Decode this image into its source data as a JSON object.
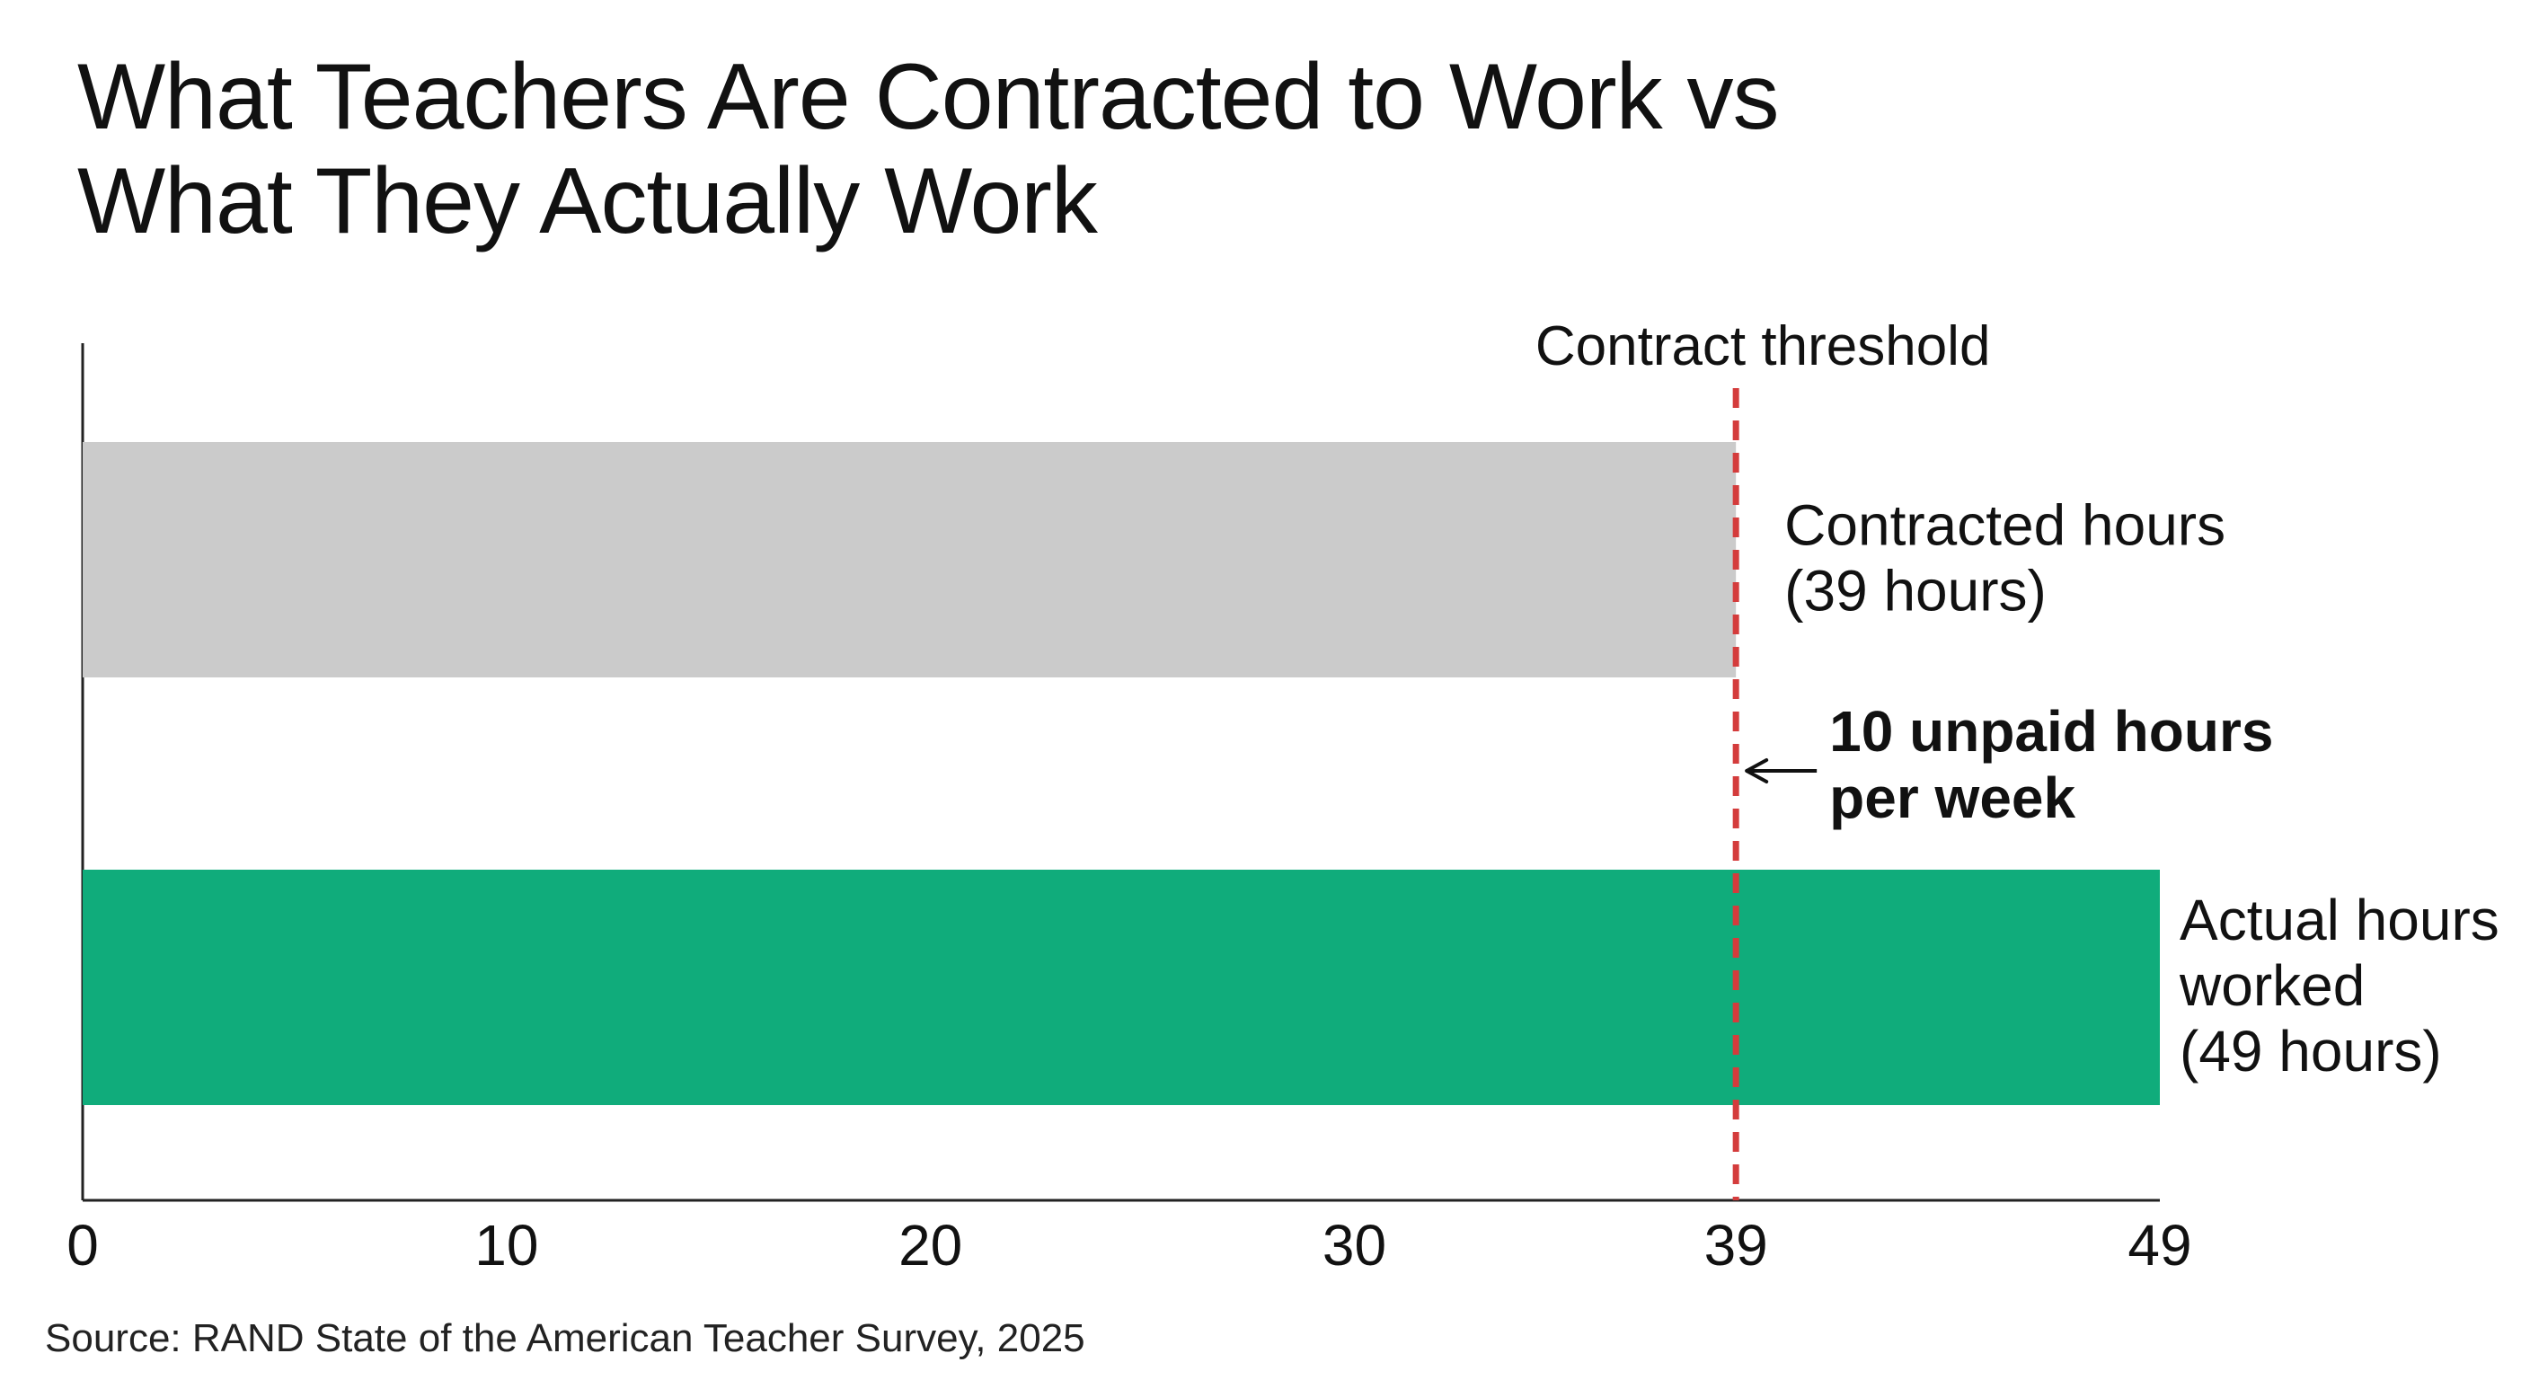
{
  "chart_data": {
    "type": "bar",
    "orientation": "horizontal",
    "title_lines": [
      "What Teachers Are Contracted to Work vs",
      "What They Actually Work"
    ],
    "bars": [
      {
        "label_lines": [
          "Contracted hours",
          "(39 hours)"
        ],
        "value": 39,
        "color": "#cbcbcb"
      },
      {
        "label_lines": [
          "Actual hours",
          "worked",
          "(49 hours)"
        ],
        "value": 49,
        "color": "#10ac7b"
      }
    ],
    "xticks": [
      0,
      10,
      20,
      30,
      39,
      49
    ],
    "xlim": [
      0,
      49
    ],
    "threshold": {
      "value": 39,
      "label": "Contract threshold",
      "color": "#d43c3c"
    },
    "annotation": {
      "lines": [
        "10 unpaid hours",
        "per week"
      ],
      "arrow": "←"
    },
    "grid": false,
    "legend": "none"
  },
  "source": "Source: RAND State of the American Teacher Survey, 2025"
}
